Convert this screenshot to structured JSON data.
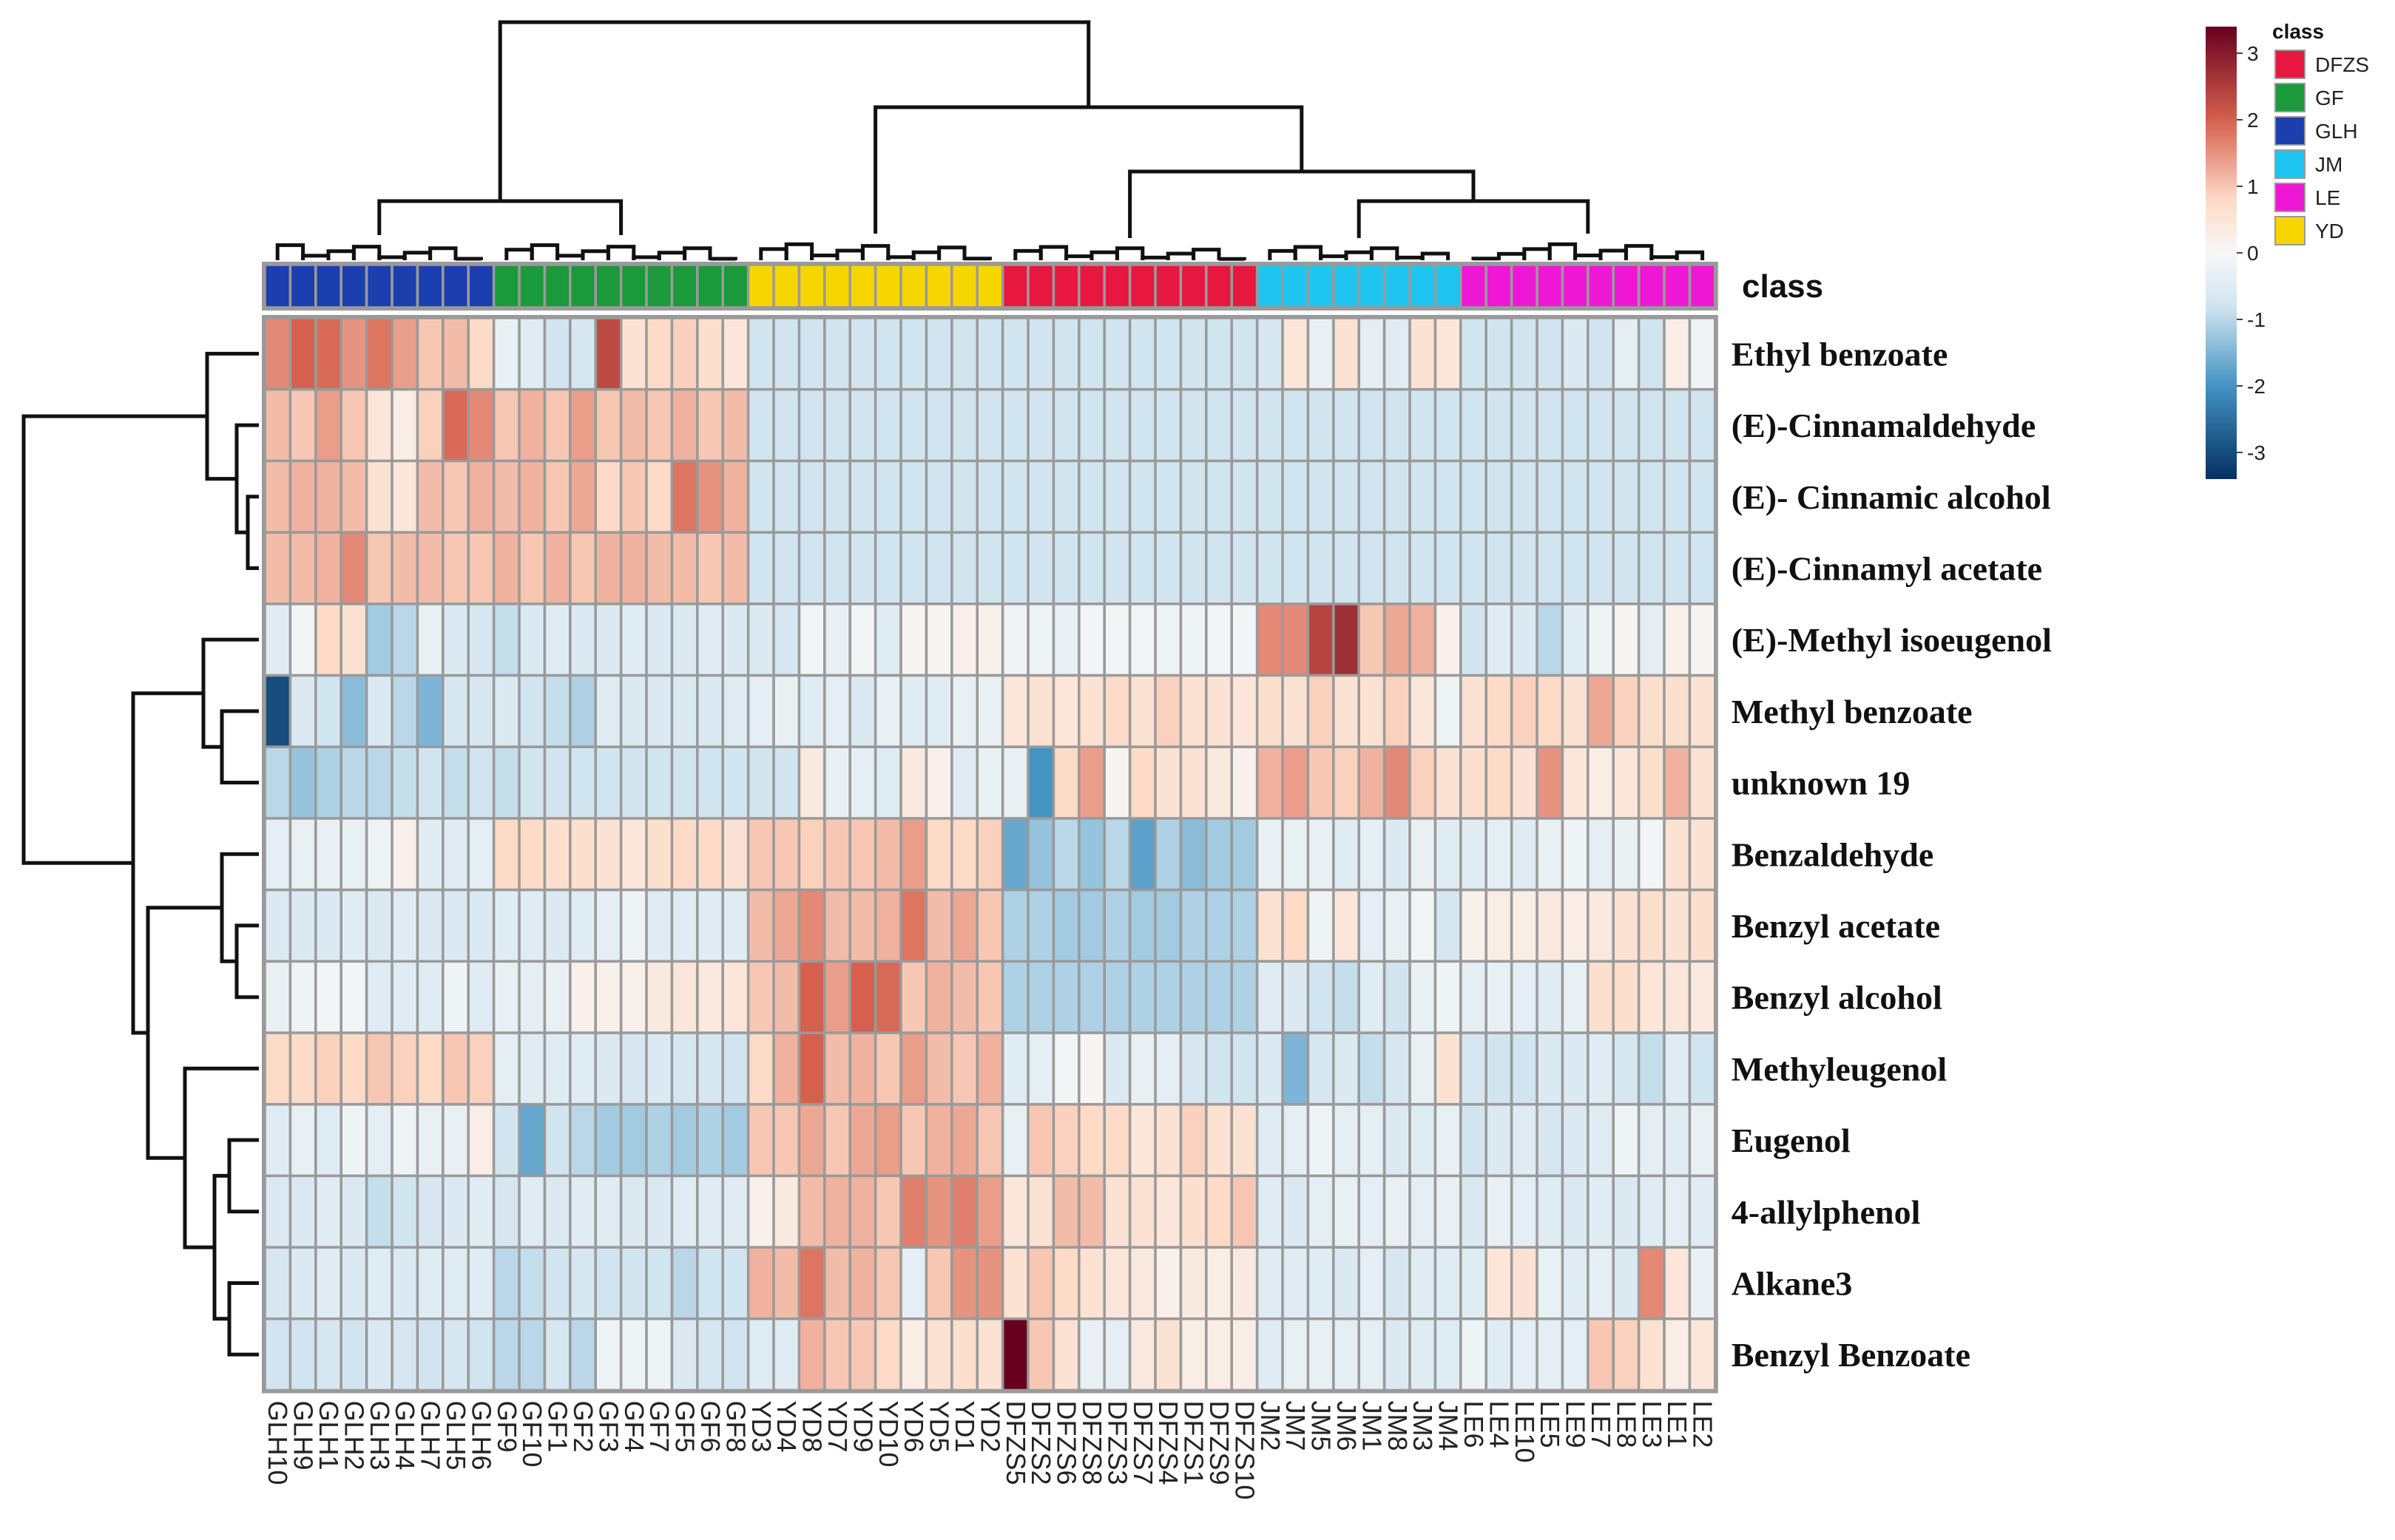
{
  "chart_data": {
    "type": "heatmap",
    "title": "",
    "annotation_label": "class",
    "legend_title": "class",
    "color_scale": {
      "min": -3.4,
      "max": 3.4,
      "ticks": [
        3,
        2,
        1,
        0,
        -1,
        -2,
        -3
      ],
      "low_color": "#053061",
      "mid_low": "#4393c3",
      "mid_light_low": "#d1e5f0",
      "mid_color": "#f7f7f7",
      "mid_light_high": "#fddbc7",
      "mid_high": "#d6604d",
      "high_color": "#67001f"
    },
    "classes": [
      {
        "name": "DFZS",
        "color": "#e8173f"
      },
      {
        "name": "GF",
        "color": "#1a9a3a"
      },
      {
        "name": "GLH",
        "color": "#1c3fb0"
      },
      {
        "name": "JM",
        "color": "#1ec5f0"
      },
      {
        "name": "LE",
        "color": "#ee18d4"
      },
      {
        "name": "YD",
        "color": "#f7d600"
      }
    ],
    "columns": [
      "GLH10",
      "GLH9",
      "GLH1",
      "GLH2",
      "GLH3",
      "GLH4",
      "GLH7",
      "GLH5",
      "GLH6",
      "GF9",
      "GF10",
      "GF1",
      "GF2",
      "GF3",
      "GF4",
      "GF7",
      "GF5",
      "GF6",
      "GF8",
      "YD3",
      "YD4",
      "YD8",
      "YD7",
      "YD9",
      "YD10",
      "YD6",
      "YD5",
      "YD1",
      "YD2",
      "DFZS5",
      "DFZS2",
      "DFZS6",
      "DFZS8",
      "DFZS3",
      "DFZS7",
      "DFZS4",
      "DFZS1",
      "DFZS9",
      "DFZS10",
      "JM2",
      "JM7",
      "JM5",
      "JM6",
      "JM1",
      "JM8",
      "JM3",
      "JM4",
      "LE6",
      "LE4",
      "LE10",
      "LE5",
      "LE9",
      "LE7",
      "LE8",
      "LE3",
      "LE1",
      "LE2"
    ],
    "column_classes": [
      "GLH",
      "GLH",
      "GLH",
      "GLH",
      "GLH",
      "GLH",
      "GLH",
      "GLH",
      "GLH",
      "GF",
      "GF",
      "GF",
      "GF",
      "GF",
      "GF",
      "GF",
      "GF",
      "GF",
      "GF",
      "YD",
      "YD",
      "YD",
      "YD",
      "YD",
      "YD",
      "YD",
      "YD",
      "YD",
      "YD",
      "DFZS",
      "DFZS",
      "DFZS",
      "DFZS",
      "DFZS",
      "DFZS",
      "DFZS",
      "DFZS",
      "DFZS",
      "DFZS",
      "JM",
      "JM",
      "JM",
      "JM",
      "JM",
      "JM",
      "JM",
      "JM",
      "LE",
      "LE",
      "LE",
      "LE",
      "LE",
      "LE",
      "LE",
      "LE",
      "LE",
      "LE"
    ],
    "rows": [
      "Ethyl benzoate",
      "(E)-Cinnamaldehyde",
      "(E)- Cinnamic alcohol",
      "(E)-Cinnamyl acetate",
      "(E)-Methyl isoeugenol",
      "Methyl benzoate",
      "unknown 19",
      "Benzaldehyde",
      "Benzyl acetate",
      "Benzyl alcohol",
      "Methyleugenol",
      "Eugenol",
      "4-allylphenol",
      "Alkane3",
      "Benzyl Benzoate"
    ],
    "values": [
      [
        1.6,
        2.0,
        1.9,
        1.5,
        1.8,
        1.4,
        1.0,
        1.1,
        0.8,
        -0.3,
        -0.5,
        -0.8,
        -0.7,
        2.3,
        0.6,
        0.8,
        0.9,
        0.7,
        0.5,
        -0.8,
        -0.8,
        -0.8,
        -0.8,
        -0.8,
        -0.8,
        -0.8,
        -0.8,
        -0.8,
        -0.8,
        -0.8,
        -0.8,
        -0.8,
        -0.8,
        -0.8,
        -0.8,
        -0.8,
        -0.8,
        -0.8,
        -0.8,
        -0.7,
        0.5,
        -0.3,
        0.6,
        -0.4,
        -0.5,
        0.6,
        0.5,
        -0.8,
        -0.8,
        -0.8,
        -0.8,
        -0.6,
        -0.8,
        -0.4,
        -0.8,
        0.3,
        -0.2
      ],
      [
        1.1,
        1.0,
        1.4,
        1.0,
        0.5,
        0.3,
        0.9,
        1.9,
        1.6,
        1.0,
        1.2,
        1.0,
        1.4,
        1.0,
        1.1,
        1.0,
        1.2,
        1.0,
        1.1,
        -0.8,
        -0.8,
        -0.8,
        -0.8,
        -0.8,
        -0.8,
        -0.8,
        -0.8,
        -0.8,
        -0.8,
        -0.8,
        -0.8,
        -0.8,
        -0.8,
        -0.8,
        -0.8,
        -0.8,
        -0.8,
        -0.8,
        -0.8,
        -0.8,
        -0.8,
        -0.8,
        -0.8,
        -0.8,
        -0.8,
        -0.8,
        -0.8,
        -0.8,
        -0.8,
        -0.8,
        -0.8,
        -0.8,
        -0.8,
        -0.8,
        -0.8,
        -0.8,
        -0.8
      ],
      [
        1.1,
        1.2,
        1.2,
        1.1,
        0.6,
        0.5,
        1.1,
        1.0,
        1.2,
        1.1,
        1.2,
        1.0,
        1.3,
        0.8,
        1.0,
        0.8,
        1.8,
        1.5,
        1.2,
        -0.8,
        -0.8,
        -0.8,
        -0.8,
        -0.8,
        -0.8,
        -0.8,
        -0.8,
        -0.8,
        -0.8,
        -0.8,
        -0.8,
        -0.8,
        -0.8,
        -0.8,
        -0.8,
        -0.8,
        -0.8,
        -0.8,
        -0.8,
        -0.8,
        -0.8,
        -0.8,
        -0.8,
        -0.8,
        -0.8,
        -0.8,
        -0.8,
        -0.8,
        -0.8,
        -0.8,
        -0.8,
        -0.8,
        -0.8,
        -0.8,
        -0.8,
        -0.8,
        -0.8
      ],
      [
        1.1,
        1.1,
        1.2,
        1.6,
        1.0,
        1.1,
        1.1,
        1.0,
        1.0,
        1.2,
        1.0,
        1.2,
        1.0,
        1.2,
        1.2,
        1.1,
        1.1,
        1.0,
        1.1,
        -0.8,
        -0.8,
        -0.8,
        -0.8,
        -0.8,
        -0.8,
        -0.8,
        -0.8,
        -0.8,
        -0.8,
        -0.8,
        -0.8,
        -0.8,
        -0.8,
        -0.8,
        -0.8,
        -0.8,
        -0.8,
        -0.8,
        -0.8,
        -0.8,
        -0.8,
        -0.8,
        -0.8,
        -0.8,
        -0.8,
        -0.8,
        -0.8,
        -0.8,
        -0.8,
        -0.8,
        -0.8,
        -0.8,
        -0.8,
        -0.8,
        -0.8,
        -0.8,
        -0.8
      ],
      [
        -0.5,
        -0.1,
        0.8,
        0.6,
        -1.2,
        -1.0,
        -0.3,
        -0.6,
        -0.7,
        -0.9,
        -0.6,
        -0.5,
        -0.6,
        -0.6,
        -0.5,
        -0.6,
        -0.6,
        -0.5,
        -0.6,
        -0.6,
        -0.7,
        -0.1,
        -0.3,
        -0.1,
        -0.5,
        0.1,
        0.1,
        0.2,
        0.2,
        -0.2,
        -0.2,
        -0.3,
        -0.1,
        -0.1,
        -0.1,
        -0.2,
        -0.2,
        -0.1,
        -0.1,
        1.6,
        1.6,
        2.4,
        2.7,
        1.0,
        1.3,
        1.2,
        0.2,
        -0.8,
        -0.5,
        -0.6,
        -1.0,
        -0.5,
        -0.2,
        0.1,
        -0.4,
        0.2,
        0.1
      ],
      [
        -3.0,
        -0.6,
        -0.8,
        -1.4,
        -0.6,
        -1.0,
        -1.5,
        -0.7,
        -0.7,
        -0.6,
        -0.8,
        -0.9,
        -1.1,
        -0.5,
        -0.6,
        -0.6,
        -0.6,
        -0.6,
        -0.5,
        -0.4,
        -0.3,
        -0.5,
        -0.4,
        -0.6,
        -0.3,
        -0.5,
        -0.5,
        -0.3,
        -0.3,
        0.5,
        0.6,
        0.5,
        0.6,
        0.8,
        0.6,
        0.9,
        0.6,
        0.6,
        0.5,
        0.7,
        0.6,
        0.9,
        0.6,
        0.6,
        0.9,
        0.5,
        -0.2,
        0.6,
        0.8,
        0.9,
        0.8,
        0.6,
        1.3,
        0.9,
        0.7,
        0.7,
        0.6
      ],
      [
        -1.0,
        -1.3,
        -1.1,
        -1.0,
        -1.0,
        -0.9,
        -0.8,
        -0.9,
        -0.8,
        -0.9,
        -0.8,
        -0.8,
        -0.8,
        -0.8,
        -0.8,
        -0.8,
        -0.8,
        -0.8,
        -0.8,
        -0.8,
        -0.8,
        0.4,
        -0.3,
        -0.4,
        -0.5,
        0.4,
        0.2,
        -0.5,
        -0.3,
        -0.3,
        -2.0,
        0.8,
        1.4,
        0.1,
        0.8,
        0.6,
        0.6,
        0.4,
        0.2,
        1.2,
        1.4,
        1.0,
        0.9,
        1.2,
        1.6,
        0.9,
        0.6,
        0.7,
        0.8,
        0.6,
        1.5,
        0.5,
        0.3,
        0.5,
        0.7,
        1.2,
        0.6
      ],
      [
        -0.4,
        -0.3,
        -0.3,
        -0.3,
        -0.2,
        0.2,
        -0.5,
        -0.5,
        -0.4,
        0.8,
        0.8,
        0.7,
        0.7,
        0.6,
        0.5,
        0.7,
        0.8,
        0.8,
        0.6,
        1.0,
        1.0,
        0.9,
        1.0,
        1.0,
        1.1,
        1.4,
        0.8,
        0.8,
        0.9,
        -1.7,
        -1.3,
        -1.0,
        -1.3,
        -1.0,
        -1.8,
        -1.1,
        -1.4,
        -1.2,
        -1.2,
        -0.3,
        -0.3,
        -0.3,
        -0.5,
        -0.4,
        -0.6,
        -0.3,
        -0.5,
        -0.5,
        -0.4,
        -0.5,
        -0.3,
        -0.2,
        -0.4,
        -0.3,
        -0.1,
        0.6,
        0.6
      ],
      [
        -0.6,
        -0.6,
        -0.6,
        -0.5,
        -0.6,
        -0.5,
        -0.6,
        -0.6,
        -0.6,
        -0.5,
        -0.5,
        -0.6,
        -0.5,
        -0.4,
        -0.2,
        -0.5,
        -0.5,
        -0.5,
        -0.5,
        1.1,
        1.3,
        1.6,
        1.1,
        1.1,
        1.2,
        1.8,
        1.1,
        1.3,
        1.0,
        -1.1,
        -1.1,
        -1.2,
        -1.2,
        -1.1,
        -1.2,
        -1.2,
        -1.1,
        -1.1,
        -1.1,
        0.6,
        0.8,
        -0.2,
        0.5,
        -0.4,
        -0.3,
        -0.1,
        -0.7,
        0.2,
        0.3,
        0.3,
        0.4,
        0.3,
        0.4,
        0.6,
        0.7,
        0.6,
        0.7
      ],
      [
        -0.3,
        -0.2,
        -0.1,
        -0.1,
        -0.5,
        -0.5,
        -0.5,
        -0.2,
        -0.5,
        -0.3,
        -0.4,
        -0.3,
        0.2,
        0.2,
        0.2,
        0.4,
        0.5,
        0.4,
        0.5,
        1.0,
        1.1,
        2.0,
        1.4,
        2.0,
        1.9,
        1.0,
        1.2,
        1.1,
        1.0,
        -1.1,
        -1.1,
        -1.1,
        -1.1,
        -1.1,
        -1.1,
        -1.1,
        -1.1,
        -1.1,
        -1.1,
        -0.5,
        -0.6,
        -0.8,
        -0.9,
        -0.5,
        -0.8,
        -0.3,
        -0.2,
        -0.4,
        -0.3,
        -0.4,
        -0.5,
        -0.3,
        0.7,
        0.7,
        0.5,
        0.5,
        0.4
      ],
      [
        0.8,
        0.8,
        0.9,
        0.8,
        1.0,
        0.9,
        0.8,
        1.0,
        0.9,
        -0.4,
        -0.5,
        -0.5,
        -0.5,
        -0.6,
        -0.7,
        -0.6,
        -0.7,
        -0.7,
        -0.8,
        0.8,
        1.2,
        2.0,
        1.1,
        1.2,
        1.0,
        1.4,
        1.1,
        1.0,
        1.2,
        -0.5,
        -0.4,
        -0.1,
        0.1,
        -0.6,
        -0.3,
        -0.4,
        -0.7,
        -0.8,
        -0.8,
        -0.6,
        -1.5,
        -0.7,
        -0.6,
        -0.9,
        -0.7,
        -0.3,
        0.6,
        -0.7,
        -0.8,
        -0.8,
        -0.6,
        -0.6,
        -0.5,
        -0.7,
        -0.9,
        -0.5,
        -0.8
      ],
      [
        -0.5,
        -0.3,
        -0.5,
        -0.2,
        -0.4,
        -0.2,
        -0.3,
        -0.3,
        0.3,
        -0.8,
        -1.7,
        -0.8,
        -1.0,
        -1.2,
        -1.2,
        -1.1,
        -1.2,
        -1.1,
        -1.2,
        1.0,
        1.0,
        1.3,
        1.0,
        1.3,
        1.4,
        1.0,
        1.2,
        1.3,
        1.0,
        -0.3,
        1.0,
        0.9,
        0.8,
        0.8,
        0.5,
        0.6,
        0.9,
        0.6,
        0.6,
        -0.5,
        -0.4,
        -0.2,
        -0.4,
        -0.4,
        -0.6,
        -0.5,
        -0.3,
        -0.8,
        -0.6,
        -0.5,
        -0.7,
        -0.6,
        -0.5,
        -0.2,
        -0.4,
        -0.5,
        -0.3
      ],
      [
        -0.6,
        -0.6,
        -0.5,
        -0.6,
        -0.9,
        -0.8,
        -0.7,
        -0.6,
        -0.5,
        -0.7,
        -0.5,
        -0.6,
        -0.5,
        -0.5,
        -0.6,
        -0.6,
        -0.5,
        -0.5,
        -0.5,
        0.2,
        0.4,
        1.1,
        1.2,
        1.2,
        1.0,
        1.7,
        1.5,
        1.7,
        1.4,
        0.5,
        0.6,
        1.1,
        1.1,
        0.6,
        0.6,
        0.5,
        0.7,
        0.8,
        1.0,
        -0.5,
        -0.6,
        -0.4,
        -0.3,
        -0.4,
        -0.3,
        -0.4,
        -0.3,
        -0.6,
        -0.3,
        -0.4,
        -0.5,
        -0.6,
        -0.5,
        -0.6,
        -0.5,
        -0.4,
        -0.5
      ],
      [
        -0.7,
        -0.6,
        -0.5,
        -0.6,
        -0.5,
        -0.6,
        -0.5,
        -0.5,
        -0.5,
        -1.0,
        -0.9,
        -0.8,
        -0.7,
        -0.8,
        -0.8,
        -0.8,
        -1.0,
        -0.8,
        -0.8,
        1.2,
        1.1,
        1.8,
        1.1,
        1.2,
        1.0,
        -0.4,
        1.0,
        1.5,
        1.5,
        0.6,
        1.0,
        0.8,
        0.6,
        0.5,
        0.4,
        0.2,
        0.4,
        0.3,
        0.4,
        -0.5,
        -0.5,
        -0.5,
        -0.6,
        -0.4,
        -0.7,
        -0.5,
        -0.5,
        -0.5,
        0.5,
        0.6,
        -0.3,
        -0.5,
        -0.4,
        -0.6,
        1.6,
        0.5,
        -0.3
      ],
      [
        -0.8,
        -0.8,
        -0.7,
        -0.8,
        -0.6,
        -0.7,
        -0.8,
        -0.7,
        -0.8,
        -1.0,
        -1.0,
        -0.7,
        -1.0,
        -0.2,
        -0.2,
        -0.2,
        -0.6,
        -0.7,
        -0.8,
        -0.5,
        -0.5,
        1.2,
        1.0,
        1.0,
        0.8,
        0.3,
        0.6,
        0.7,
        0.6,
        3.4,
        1.0,
        0.6,
        -0.3,
        -0.4,
        0.4,
        0.6,
        0.3,
        0.3,
        0.3,
        -0.5,
        -0.3,
        -0.3,
        -0.4,
        -0.4,
        -0.6,
        -0.5,
        -0.5,
        -0.2,
        -0.5,
        -0.4,
        -0.4,
        -0.4,
        1.0,
        0.9,
        0.6,
        0.3,
        0.5
      ]
    ]
  }
}
